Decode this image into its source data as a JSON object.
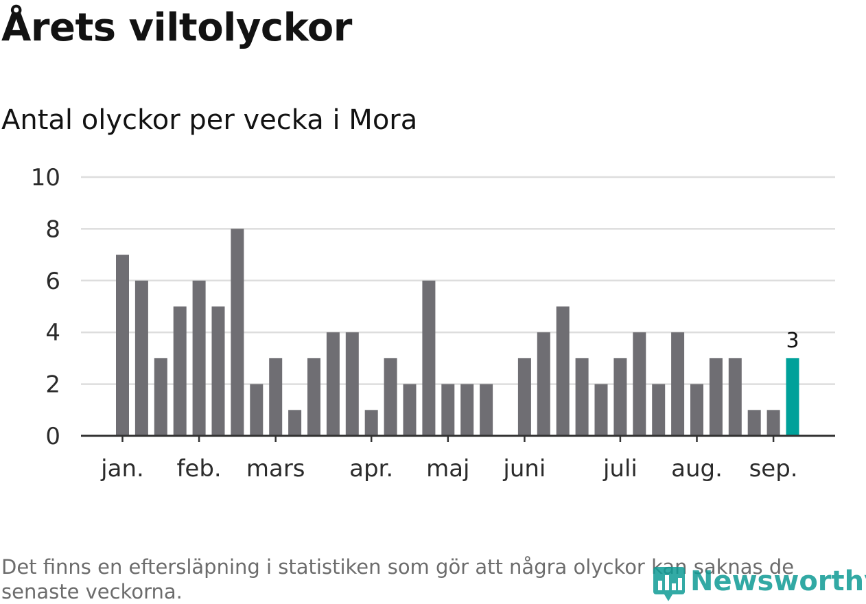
{
  "title": "Årets viltolyckor",
  "subtitle": "Antal olyckor per vecka i Mora",
  "footnote": "Det finns en eftersläpning i statistiken som gör att några olyckor kan saknas de senaste veckorna.",
  "logo": {
    "text": "Newsworthy",
    "icon": "newsworthy-logo-icon",
    "color": "#0f9b95"
  },
  "chart_data": {
    "type": "bar",
    "title": "Antal olyckor per vecka i Mora",
    "xlabel": "",
    "ylabel": "",
    "ylim": [
      0,
      10
    ],
    "yticks": [
      "0",
      "2",
      "4",
      "6",
      "8",
      "10"
    ],
    "grid": true,
    "month_labels": [
      {
        "label": "jan.",
        "week": 1
      },
      {
        "label": "feb.",
        "week": 5
      },
      {
        "label": "mars",
        "week": 9
      },
      {
        "label": "apr.",
        "week": 14
      },
      {
        "label": "maj",
        "week": 18
      },
      {
        "label": "juni",
        "week": 22
      },
      {
        "label": "juli",
        "week": 27
      },
      {
        "label": "aug.",
        "week": 31
      },
      {
        "label": "sep.",
        "week": 35
      }
    ],
    "weeks": [
      1,
      2,
      3,
      4,
      5,
      6,
      7,
      8,
      9,
      10,
      11,
      12,
      13,
      14,
      15,
      16,
      17,
      18,
      19,
      20,
      21,
      22,
      23,
      24,
      25,
      26,
      27,
      28,
      29,
      30,
      31,
      32,
      33,
      34,
      35,
      36
    ],
    "values": [
      7,
      6,
      3,
      5,
      6,
      5,
      8,
      2,
      3,
      1,
      3,
      4,
      4,
      1,
      3,
      2,
      6,
      2,
      2,
      2,
      0,
      3,
      4,
      5,
      3,
      2,
      3,
      4,
      2,
      4,
      2,
      3,
      3,
      1,
      1,
      3
    ],
    "highlight_index": 35,
    "highlight_label": "3",
    "colors": {
      "bar": "#6f6e73",
      "highlight": "#00a19a",
      "grid": "#dddddd",
      "axis": "#333333"
    }
  }
}
